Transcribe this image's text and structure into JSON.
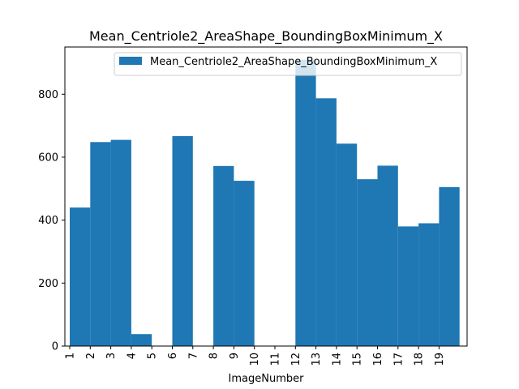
{
  "chart_data": {
    "type": "bar",
    "title": "Mean_Centriole2_AreaShape_BoundingBoxMinimum_X",
    "xlabel": "ImageNumber",
    "ylabel": "",
    "categories": [
      "1",
      "2",
      "3",
      "4",
      "5",
      "6",
      "7",
      "8",
      "9",
      "10",
      "11",
      "12",
      "13",
      "14",
      "15",
      "16",
      "17",
      "18",
      "19"
    ],
    "x_tick_labels": [
      "1",
      "2",
      "3",
      "4",
      "5",
      "6",
      "7",
      "8",
      "9",
      "10",
      "11",
      "12",
      "13",
      "14",
      "15",
      "16",
      "17",
      "18",
      "19"
    ],
    "series": [
      {
        "name": "Mean_Centriole2_AreaShape_BoundingBoxMinimum_X",
        "color": "#1f77b4",
        "values": [
          440,
          648,
          655,
          38,
          0,
          667,
          0,
          572,
          525,
          0,
          0,
          910,
          787,
          643,
          530,
          573,
          380,
          390,
          505
        ]
      }
    ],
    "ylim": [
      0,
      950
    ],
    "yticks": [
      0,
      200,
      400,
      600,
      800
    ],
    "legend_position": "top-right",
    "grid": false
  }
}
